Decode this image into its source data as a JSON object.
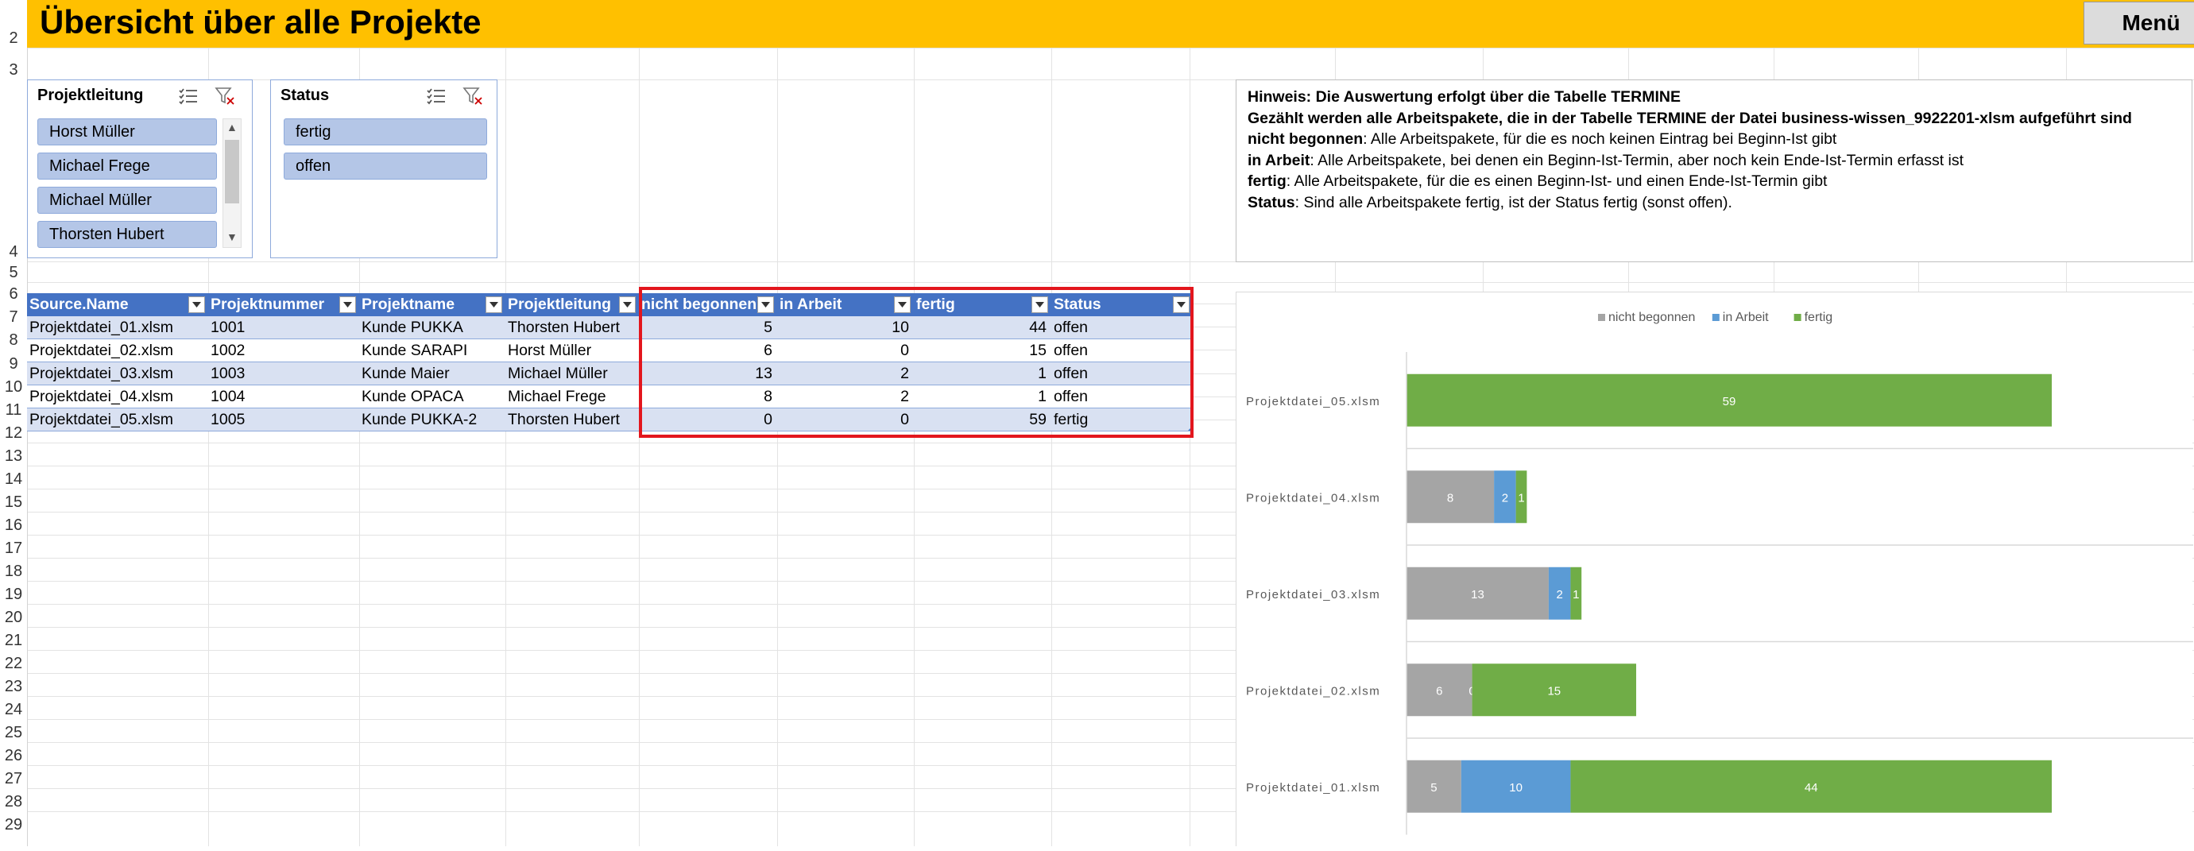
{
  "title": "Übersicht über alle Projekte",
  "menu_label": "Menü",
  "row_numbers": [
    "2",
    "3",
    "4",
    "5",
    "6",
    "7",
    "8",
    "9",
    "10",
    "11",
    "12",
    "13",
    "14",
    "15",
    "16",
    "17",
    "18",
    "19",
    "20",
    "21",
    "22",
    "23",
    "24",
    "25",
    "26",
    "27",
    "28",
    "29"
  ],
  "slicer_projektleitung": {
    "title": "Projektleitung",
    "items": [
      "Horst Müller",
      "Michael Frege",
      "Michael Müller",
      "Thorsten Hubert"
    ]
  },
  "slicer_status": {
    "title": "Status",
    "items": [
      "fertig",
      "offen"
    ]
  },
  "note": {
    "line1": "Hinweis: Die Auswertung erfolgt über die Tabelle TERMINE",
    "line2": "Gezählt werden alle Arbeitspakete, die in der Tabelle TERMINE der Datei business-wissen_9922201-xlsm aufgeführt sind",
    "line3_bold": "nicht begonnen",
    "line3_rest": ": Alle Arbeitspakete, für die es noch keinen Eintrag bei Beginn-Ist gibt",
    "line4_bold": "in Arbeit",
    "line4_rest": ": Alle Arbeitspakete, bei denen ein Beginn-Ist-Termin, aber noch kein Ende-Ist-Termin erfasst ist",
    "line5_bold": "fertig",
    "line5_rest": ": Alle Arbeitspakete, für die es einen  Beginn-Ist- und einen Ende-Ist-Termin gibt",
    "line6_bold": "Status",
    "line6_rest": ": Sind alle Arbeitspakete fertig, ist der Status fertig (sonst offen)."
  },
  "table": {
    "headers": [
      "Source.Name",
      "Projektnummer",
      "Projektname",
      "Projektleitung",
      "nicht begonnen",
      "in Arbeit",
      "fertig",
      "Status"
    ],
    "rows": [
      [
        "Projektdatei_01.xlsm",
        "1001",
        "Kunde PUKKA",
        "Thorsten Hubert",
        "5",
        "10",
        "44",
        "offen"
      ],
      [
        "Projektdatei_02.xlsm",
        "1002",
        "Kunde SARAPI",
        "Horst Müller",
        "6",
        "0",
        "15",
        "offen"
      ],
      [
        "Projektdatei_03.xlsm",
        "1003",
        "Kunde Maier",
        "Michael Müller",
        "13",
        "2",
        "1",
        "offen"
      ],
      [
        "Projektdatei_04.xlsm",
        "1004",
        "Kunde OPACA",
        "Michael Frege",
        "8",
        "2",
        "1",
        "offen"
      ],
      [
        "Projektdatei_05.xlsm",
        "1005",
        "Kunde PUKKA-2",
        "Thorsten Hubert",
        "0",
        "0",
        "59",
        "fertig"
      ]
    ]
  },
  "chart_data": {
    "type": "bar",
    "orientation": "horizontal",
    "stacked": true,
    "categories": [
      "Projektdatei_05.xlsm",
      "Projektdatei_04.xlsm",
      "Projektdatei_03.xlsm",
      "Projektdatei_02.xlsm",
      "Projektdatei_01.xlsm"
    ],
    "series": [
      {
        "name": "nicht begonnen",
        "color": "#a5a5a5",
        "values": [
          0,
          8,
          13,
          6,
          5
        ]
      },
      {
        "name": "in Arbeit",
        "color": "#5b9bd5",
        "values": [
          0,
          2,
          2,
          0,
          10
        ]
      },
      {
        "name": "fertig",
        "color": "#70ad47",
        "values": [
          59,
          1,
          1,
          15,
          44
        ]
      }
    ],
    "legend_position": "top",
    "xlim": [
      0,
      59
    ]
  },
  "colors": {
    "banner": "#ffc000",
    "table_header": "#4472c4",
    "table_band": "#d9e1f2",
    "selection": "#e3161d",
    "slicer_item": "#b4c6e7"
  }
}
